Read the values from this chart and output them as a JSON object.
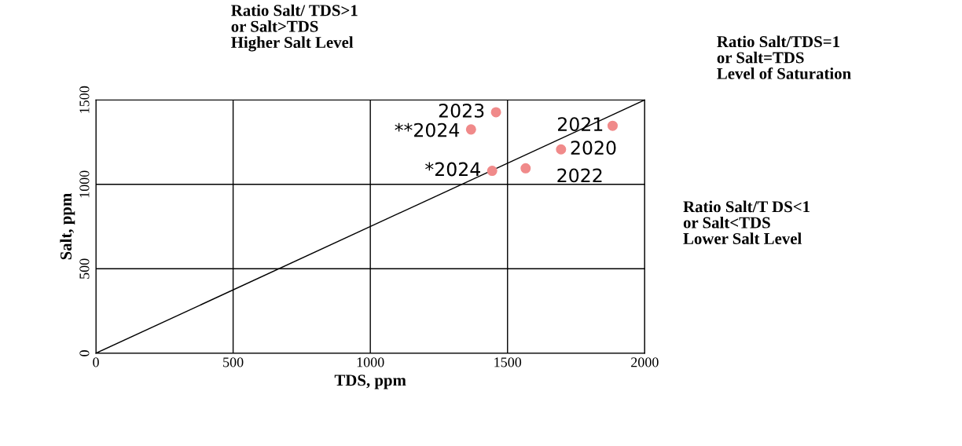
{
  "chart_data": {
    "type": "scatter",
    "xlabel": "TDS, ppm",
    "ylabel": "Salt, ppm",
    "xlim": [
      0,
      2000
    ],
    "ylim": [
      0,
      1500
    ],
    "xticks": [
      0,
      500,
      1000,
      1500,
      2000
    ],
    "yticks": [
      0,
      500,
      1000,
      1500
    ],
    "grid": true,
    "series": [
      {
        "marker": "circle",
        "color": "#f08a8a",
        "x": [
          1458,
          1367,
          1444,
          1566,
          1695,
          1883
        ],
        "values": [
          1427,
          1325,
          1080,
          1095,
          1207,
          1347
        ]
      },
      {
        "type": "line",
        "color": "#000000",
        "x": [
          0,
          2000
        ],
        "values": [
          0,
          1500
        ]
      }
    ],
    "annotations": [
      {
        "text": "2023",
        "x": 1458,
        "y": 1427
      },
      {
        "text": "**2024",
        "x": 1367,
        "y": 1325
      },
      {
        "text": "*2024",
        "x": 1444,
        "y": 1080
      },
      {
        "text": "2022",
        "x": 1566,
        "y": 1095
      },
      {
        "text": "2020",
        "x": 1695,
        "y": 1207
      },
      {
        "text": "2021",
        "x": 1883,
        "y": 1347
      },
      "Ratio Salt/ TDS>1\nor Salt>TDS\nHigher Salt Level",
      "Ratio Salt/TDS=1\nor Salt=TDS\nLevel of Saturation",
      "Ratio Salt/T DS<1\nor Salt<TDS\nLower Salt Level"
    ]
  }
}
